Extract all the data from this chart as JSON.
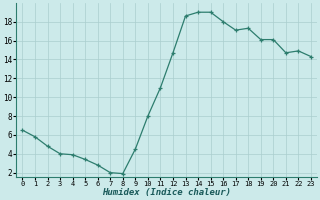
{
  "x": [
    0,
    1,
    2,
    3,
    4,
    5,
    6,
    7,
    8,
    9,
    10,
    11,
    12,
    13,
    14,
    15,
    16,
    17,
    18,
    19,
    20,
    21,
    22,
    23
  ],
  "y": [
    6.5,
    5.8,
    4.8,
    4.0,
    3.9,
    3.4,
    2.8,
    2.0,
    1.9,
    4.5,
    8.0,
    11.0,
    14.7,
    18.6,
    19.0,
    19.0,
    18.0,
    17.1,
    17.3,
    16.1,
    16.1,
    14.7,
    14.9,
    14.3
  ],
  "xlabel": "Humidex (Indice chaleur)",
  "ylim": [
    1.5,
    20.0
  ],
  "yticks": [
    2,
    4,
    6,
    8,
    10,
    12,
    14,
    16,
    18
  ],
  "xticks": [
    0,
    1,
    2,
    3,
    4,
    5,
    6,
    7,
    8,
    9,
    10,
    11,
    12,
    13,
    14,
    15,
    16,
    17,
    18,
    19,
    20,
    21,
    22,
    23
  ],
  "line_color": "#2d7d6e",
  "bg_color": "#cceaea",
  "grid_color": "#aacece"
}
